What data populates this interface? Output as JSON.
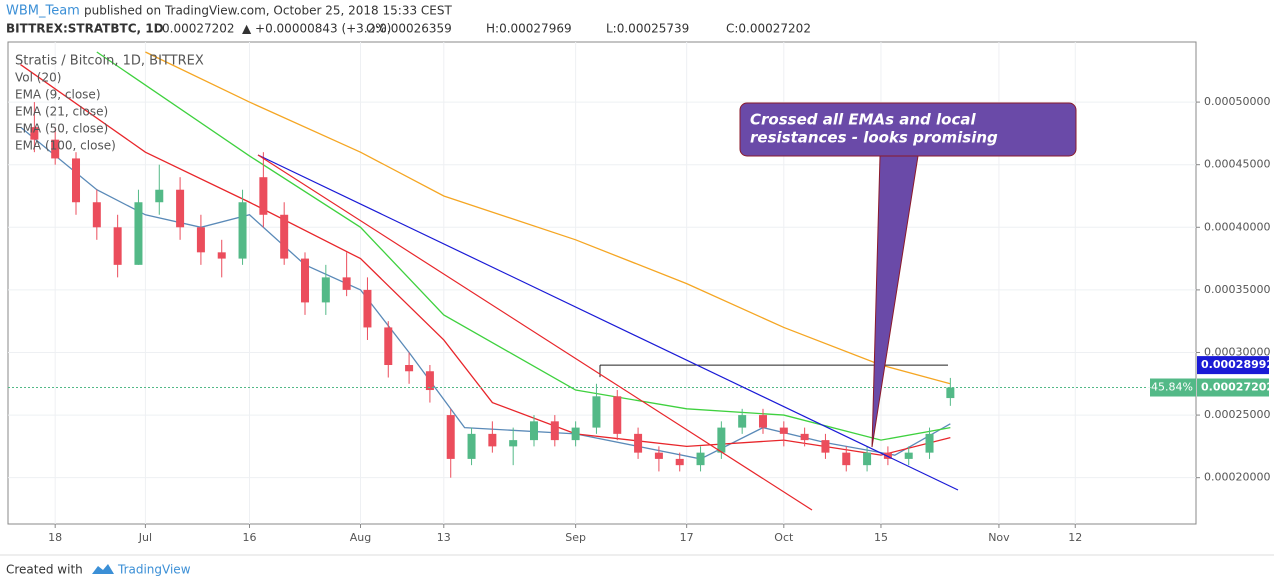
{
  "header": {
    "author": "WBM_Team",
    "published": "published on TradingView.com, October 25, 2018 15:33 CEST",
    "symbol": "BITTREX:STRATBTC, 1D",
    "last": "0.00027202",
    "change": "▲ +0.00000843 (+3.2%)",
    "open": "O:0.00026359",
    "high": "H:0.00027969",
    "low": "L:0.00025739",
    "close": "C:0.00027202"
  },
  "legend": [
    "Stratis / Bitcoin, 1D, BITTREX",
    "Vol (20)",
    "EMA (9, close)",
    "EMA (21, close)",
    "EMA (50, close)",
    "EMA (100, close)"
  ],
  "annotation": [
    "Crossed all EMAs and local",
    "resistances - looks promising"
  ],
  "footer": {
    "created": "Created with",
    "brand": "TradingView"
  },
  "chart_data": {
    "type": "candlestick",
    "up_color": "#53b987",
    "down_color": "#eb4d5c",
    "grid": true,
    "xlim": [
      162.2,
      333.4
    ],
    "ylim": [
      0.000163,
      0.000548
    ],
    "xticks": [
      {
        "value": 169,
        "label": "18"
      },
      {
        "value": 182,
        "label": "Jul"
      },
      {
        "value": 197,
        "label": "16"
      },
      {
        "value": 213,
        "label": "Aug"
      },
      {
        "value": 225,
        "label": "13"
      },
      {
        "value": 244,
        "label": "Sep"
      },
      {
        "value": 260,
        "label": "17"
      },
      {
        "value": 274,
        "label": "Oct"
      },
      {
        "value": 288,
        "label": "15"
      },
      {
        "value": 305,
        "label": "Nov"
      },
      {
        "value": 316,
        "label": "12"
      }
    ],
    "yticks": [
      {
        "value": 0.0002,
        "label": "0.00020000"
      },
      {
        "value": 0.00025,
        "label": "0.00025000"
      },
      {
        "value": 0.0003,
        "label": "0.00030000"
      },
      {
        "value": 0.00035,
        "label": "0.00035000"
      },
      {
        "value": 0.0004,
        "label": "0.00040000"
      },
      {
        "value": 0.00045,
        "label": "0.00045000"
      },
      {
        "value": 0.0005,
        "label": "0.00050000"
      }
    ],
    "resistance": 0.00028992,
    "last_price": 0.00027202,
    "last_change": "-45.84%",
    "candles": [
      {
        "x": 166,
        "open": 0.00048,
        "high": 0.0005,
        "low": 0.00046,
        "close": 0.00047
      },
      {
        "x": 169,
        "open": 0.00047,
        "high": 0.00048,
        "low": 0.00045,
        "close": 0.000455
      },
      {
        "x": 172,
        "open": 0.000455,
        "high": 0.00046,
        "low": 0.00041,
        "close": 0.00042
      },
      {
        "x": 175,
        "open": 0.00042,
        "high": 0.00043,
        "low": 0.00039,
        "close": 0.0004
      },
      {
        "x": 178,
        "open": 0.0004,
        "high": 0.00041,
        "low": 0.00036,
        "close": 0.00037
      },
      {
        "x": 181,
        "open": 0.00037,
        "high": 0.00043,
        "low": 0.00037,
        "close": 0.00042
      },
      {
        "x": 184,
        "open": 0.00042,
        "high": 0.00045,
        "low": 0.00041,
        "close": 0.00043
      },
      {
        "x": 187,
        "open": 0.00043,
        "high": 0.00044,
        "low": 0.00039,
        "close": 0.0004
      },
      {
        "x": 190,
        "open": 0.0004,
        "high": 0.00041,
        "low": 0.00037,
        "close": 0.00038
      },
      {
        "x": 193,
        "open": 0.00038,
        "high": 0.00039,
        "low": 0.00036,
        "close": 0.000375
      },
      {
        "x": 196,
        "open": 0.000375,
        "high": 0.00043,
        "low": 0.00037,
        "close": 0.00042
      },
      {
        "x": 199,
        "open": 0.00044,
        "high": 0.00046,
        "low": 0.0004,
        "close": 0.00041
      },
      {
        "x": 202,
        "open": 0.00041,
        "high": 0.00042,
        "low": 0.00037,
        "close": 0.000375
      },
      {
        "x": 205,
        "open": 0.000375,
        "high": 0.00038,
        "low": 0.00033,
        "close": 0.00034
      },
      {
        "x": 208,
        "open": 0.00034,
        "high": 0.00037,
        "low": 0.00033,
        "close": 0.00036
      },
      {
        "x": 211,
        "open": 0.00036,
        "high": 0.00038,
        "low": 0.000345,
        "close": 0.00035
      },
      {
        "x": 214,
        "open": 0.00035,
        "high": 0.00036,
        "low": 0.00031,
        "close": 0.00032
      },
      {
        "x": 217,
        "open": 0.00032,
        "high": 0.000325,
        "low": 0.00028,
        "close": 0.00029
      },
      {
        "x": 220,
        "open": 0.00029,
        "high": 0.0003,
        "low": 0.000275,
        "close": 0.000285
      },
      {
        "x": 223,
        "open": 0.000285,
        "high": 0.00029,
        "low": 0.00026,
        "close": 0.00027
      },
      {
        "x": 226,
        "open": 0.00025,
        "high": 0.000255,
        "low": 0.0002,
        "close": 0.000215
      },
      {
        "x": 229,
        "open": 0.000215,
        "high": 0.00024,
        "low": 0.00021,
        "close": 0.000235
      },
      {
        "x": 232,
        "open": 0.000235,
        "high": 0.000245,
        "low": 0.00022,
        "close": 0.000225
      },
      {
        "x": 235,
        "open": 0.000225,
        "high": 0.00024,
        "low": 0.00021,
        "close": 0.00023
      },
      {
        "x": 238,
        "open": 0.00023,
        "high": 0.00025,
        "low": 0.000225,
        "close": 0.000245
      },
      {
        "x": 241,
        "open": 0.000245,
        "high": 0.00025,
        "low": 0.000225,
        "close": 0.00023
      },
      {
        "x": 244,
        "open": 0.00023,
        "high": 0.000245,
        "low": 0.000225,
        "close": 0.00024
      },
      {
        "x": 247,
        "open": 0.00024,
        "high": 0.000275,
        "low": 0.000235,
        "close": 0.000265
      },
      {
        "x": 250,
        "open": 0.000265,
        "high": 0.00027,
        "low": 0.00023,
        "close": 0.000235
      },
      {
        "x": 253,
        "open": 0.000235,
        "high": 0.00024,
        "low": 0.000215,
        "close": 0.00022
      },
      {
        "x": 256,
        "open": 0.00022,
        "high": 0.000225,
        "low": 0.000205,
        "close": 0.000215
      },
      {
        "x": 259,
        "open": 0.000215,
        "high": 0.00022,
        "low": 0.000205,
        "close": 0.00021
      },
      {
        "x": 262,
        "open": 0.00021,
        "high": 0.000225,
        "low": 0.000205,
        "close": 0.00022
      },
      {
        "x": 265,
        "open": 0.00022,
        "high": 0.000245,
        "low": 0.000215,
        "close": 0.00024
      },
      {
        "x": 268,
        "open": 0.00024,
        "high": 0.000255,
        "low": 0.000235,
        "close": 0.00025
      },
      {
        "x": 271,
        "open": 0.00025,
        "high": 0.000255,
        "low": 0.000235,
        "close": 0.00024
      },
      {
        "x": 274,
        "open": 0.00024,
        "high": 0.000245,
        "low": 0.000225,
        "close": 0.000235
      },
      {
        "x": 277,
        "open": 0.000235,
        "high": 0.00024,
        "low": 0.000225,
        "close": 0.00023
      },
      {
        "x": 280,
        "open": 0.00023,
        "high": 0.000235,
        "low": 0.000215,
        "close": 0.00022
      },
      {
        "x": 283,
        "open": 0.00022,
        "high": 0.000225,
        "low": 0.000205,
        "close": 0.00021
      },
      {
        "x": 286,
        "open": 0.00021,
        "high": 0.000225,
        "low": 0.000205,
        "close": 0.00022
      },
      {
        "x": 289,
        "open": 0.00022,
        "high": 0.000225,
        "low": 0.00021,
        "close": 0.000215
      },
      {
        "x": 292,
        "open": 0.000215,
        "high": 0.000225,
        "low": 0.00021,
        "close": 0.00022
      },
      {
        "x": 295,
        "open": 0.00022,
        "high": 0.00024,
        "low": 0.000215,
        "close": 0.000235
      },
      {
        "x": 298,
        "open": 0.00026359,
        "high": 0.00027969,
        "low": 0.00025739,
        "close": 0.00027202
      }
    ],
    "series": [
      {
        "name": "EMA (9, close)",
        "color": "#5a8ab8",
        "x": [
          164,
          175,
          182,
          190,
          197,
          205,
          213,
          220,
          228,
          244,
          253,
          262,
          271,
          280,
          290,
          298
        ],
        "values": [
          0.00048,
          0.00043,
          0.00041,
          0.0004,
          0.00041,
          0.00037,
          0.00035,
          0.0003,
          0.00024,
          0.000235,
          0.000225,
          0.000215,
          0.00024,
          0.000228,
          0.000218,
          0.000243
        ]
      },
      {
        "name": "EMA (21, close)",
        "color": "#e8262b",
        "x": [
          164,
          182,
          197,
          213,
          225,
          232,
          244,
          260,
          274,
          288,
          298
        ],
        "values": [
          0.00053,
          0.00046,
          0.00042,
          0.000375,
          0.00031,
          0.00026,
          0.000235,
          0.000225,
          0.00023,
          0.000218,
          0.000232
        ]
      },
      {
        "name": "EMA (50, close)",
        "color": "#3fd13f",
        "x": [
          175,
          197,
          213,
          225,
          244,
          260,
          274,
          288,
          298
        ],
        "values": [
          0.00054,
          0.000457,
          0.0004,
          0.00033,
          0.00027,
          0.000255,
          0.00025,
          0.00023,
          0.00024
        ]
      },
      {
        "name": "EMA (100, close)",
        "color": "#f5a623",
        "x": [
          182,
          197,
          213,
          225,
          244,
          260,
          274,
          288,
          298
        ],
        "values": [
          0.00054,
          0.0005,
          0.00046,
          0.000425,
          0.00039,
          0.000355,
          0.00032,
          0.00029,
          0.000275
        ]
      }
    ]
  }
}
